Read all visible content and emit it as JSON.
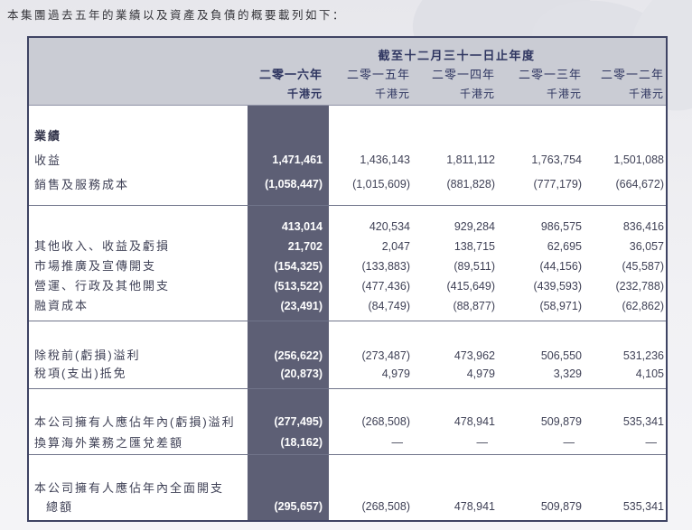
{
  "intro": "本集團過去五年的業績以及資產及負債的概要載列如下：",
  "table": {
    "header": {
      "period_title": "截至十二月三十一日止年度",
      "years": [
        "二零一六年",
        "二零一五年",
        "二零一四年",
        "二零一三年",
        "二零一二年"
      ],
      "unit": "千港元"
    },
    "sections": [
      {
        "rows": [
          {
            "label": "業績",
            "bold": true,
            "values": [
              "",
              "",
              "",
              "",
              ""
            ]
          },
          {
            "label": "收益",
            "values": [
              "1,471,461",
              "1,436,143",
              "1,811,112",
              "1,763,754",
              "1,501,088"
            ]
          },
          {
            "label": "銷售及服務成本",
            "values": [
              "(1,058,447)",
              "(1,015,609)",
              "(881,828)",
              "(777,179)",
              "(664,672)"
            ]
          }
        ]
      },
      {
        "rows": [
          {
            "label": "",
            "values": [
              "413,014",
              "420,534",
              "929,284",
              "986,575",
              "836,416"
            ]
          },
          {
            "label": "其他收入、收益及虧損",
            "values": [
              "21,702",
              "2,047",
              "138,715",
              "62,695",
              "36,057"
            ]
          },
          {
            "label": "市場推廣及宣傳開支",
            "values": [
              "(154,325)",
              "(133,883)",
              "(89,511)",
              "(44,156)",
              "(45,587)"
            ]
          },
          {
            "label": "營運、行政及其他開支",
            "values": [
              "(513,522)",
              "(477,436)",
              "(415,649)",
              "(439,593)",
              "(232,788)"
            ]
          },
          {
            "label": "融資成本",
            "values": [
              "(23,491)",
              "(84,749)",
              "(88,877)",
              "(58,971)",
              "(62,862)"
            ]
          }
        ]
      },
      {
        "rows": [
          {
            "label": "除稅前(虧損)溢利",
            "values": [
              "(256,622)",
              "(273,487)",
              "473,962",
              "506,550",
              "531,236"
            ]
          },
          {
            "label": "稅項(支出)抵免",
            "values": [
              "(20,873)",
              "4,979",
              "4,979",
              "3,329",
              "4,105"
            ]
          }
        ]
      },
      {
        "rows": [
          {
            "label": "本公司擁有人應佔年內(虧損)溢利",
            "values": [
              "(277,495)",
              "(268,508)",
              "478,941",
              "509,879",
              "535,341"
            ]
          },
          {
            "label": "換算海外業務之匯兌差額",
            "values": [
              "(18,162)",
              "—",
              "—",
              "—",
              "—"
            ]
          }
        ]
      },
      {
        "rows": [
          {
            "label": "本公司擁有人應佔年內全面開支",
            "values": [
              "",
              "",
              "",
              "",
              ""
            ]
          },
          {
            "label": "總額",
            "indent": true,
            "values": [
              "(295,657)",
              "(268,508)",
              "478,941",
              "509,879",
              "535,341"
            ]
          }
        ]
      }
    ]
  },
  "colors": {
    "highlight_band": "#5d5f75",
    "header_bg": "#caccd4",
    "table_border": "#3e4363",
    "header_text": "#2e3560",
    "body_text": "#3f4156",
    "highlight_text": "#ffffff",
    "page_bg": "#ededf1"
  }
}
